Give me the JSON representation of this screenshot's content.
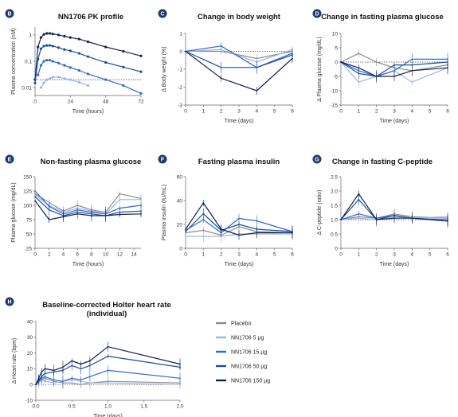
{
  "legend": [
    {
      "name": "Placebo",
      "color": "#8c8c8c"
    },
    {
      "name": "NN1706 5 µg",
      "color": "#9db4e6"
    },
    {
      "name": "NN1706 15 µg",
      "color": "#2f67d3"
    },
    {
      "name": "NN1706 50 µg",
      "color": "#1d4e9c"
    },
    {
      "name": "NN1706 150 µg",
      "color": "#0f2356"
    }
  ],
  "chart_data": [
    {
      "id": "B",
      "badge": "B",
      "type": "line",
      "title": "NN1706 PK profile",
      "xlabel": "Time (hours)",
      "ylabel": "Plasma concentration (nM)",
      "xlim": [
        0,
        72
      ],
      "xticks": [
        0,
        24,
        48,
        72
      ],
      "ylim": [
        0.005,
        2
      ],
      "ylog": true,
      "yticks": [
        0.01,
        0.1,
        1
      ],
      "yticklabels": [
        "0.01",
        "0.1",
        "1"
      ],
      "refline": 0.02,
      "series": [
        {
          "name": "NN1706 150 µg",
          "color": "#0f2356",
          "x": [
            0,
            2,
            4,
            6,
            8,
            10,
            12,
            16,
            20,
            24,
            30,
            36,
            48,
            60,
            72
          ],
          "y": [
            0.02,
            0.35,
            0.8,
            1.05,
            1.15,
            1.15,
            1.1,
            1.0,
            0.9,
            0.8,
            0.7,
            0.55,
            0.35,
            0.24,
            0.16
          ]
        },
        {
          "name": "NN1706 50 µg",
          "color": "#1d4e9c",
          "x": [
            0,
            2,
            4,
            6,
            8,
            10,
            12,
            16,
            20,
            24,
            30,
            36,
            48,
            60,
            72
          ],
          "y": [
            0.015,
            0.12,
            0.3,
            0.38,
            0.4,
            0.4,
            0.38,
            0.33,
            0.28,
            0.25,
            0.2,
            0.15,
            0.09,
            0.06,
            0.04
          ]
        },
        {
          "name": "NN1706 15 µg",
          "color": "#2f67d3",
          "x": [
            2,
            4,
            6,
            8,
            10,
            12,
            16,
            20,
            24,
            30,
            36,
            48,
            60,
            72
          ],
          "y": [
            0.03,
            0.07,
            0.1,
            0.11,
            0.11,
            0.1,
            0.085,
            0.07,
            0.058,
            0.045,
            0.033,
            0.02,
            0.012,
            0.006
          ]
        },
        {
          "name": "NN1706 5 µg",
          "color": "#9db4e6",
          "x": [
            4,
            6,
            8,
            10,
            12,
            16,
            20,
            24,
            30,
            36
          ],
          "y": [
            0.01,
            0.015,
            0.02,
            0.022,
            0.025,
            0.025,
            0.022,
            0.02,
            0.016,
            0.012
          ]
        }
      ]
    },
    {
      "id": "C",
      "badge": "C",
      "type": "line",
      "title": "Change in body weight",
      "xlabel": "Time (days)",
      "ylabel": "Δ Body weight (%)",
      "xlim": [
        0,
        6
      ],
      "xticks": [
        0,
        1,
        2,
        3,
        4,
        5,
        6
      ],
      "ylim": [
        -3,
        1
      ],
      "yticks": [
        -3,
        -2,
        -1,
        0,
        1
      ],
      "refline": 0,
      "series": [
        {
          "name": "Placebo",
          "color": "#8c8c8c",
          "x": [
            0,
            2,
            4,
            6
          ],
          "y": [
            0,
            0,
            -0.4,
            0
          ]
        },
        {
          "name": "NN1706 5 µg",
          "color": "#9db4e6",
          "x": [
            0,
            2,
            4,
            6
          ],
          "y": [
            0,
            0.1,
            -0.6,
            0.1
          ]
        },
        {
          "name": "NN1706 15 µg",
          "color": "#2f67d3",
          "x": [
            0,
            2,
            4,
            6
          ],
          "y": [
            0,
            0.3,
            -0.9,
            -0.1
          ]
        },
        {
          "name": "NN1706 50 µg",
          "color": "#1d4e9c",
          "x": [
            0,
            2,
            4,
            6
          ],
          "y": [
            0,
            -0.9,
            -0.9,
            -0.2
          ]
        },
        {
          "name": "NN1706 150 µg",
          "color": "#0f2356",
          "x": [
            0,
            2,
            4,
            6
          ],
          "y": [
            0,
            -1.5,
            -2.2,
            -0.4
          ]
        }
      ]
    },
    {
      "id": "D",
      "badge": "D",
      "type": "line",
      "title": "Change in fasting plasma glucose",
      "xlabel": "Time (days)",
      "ylabel": "Δ Plasma glucose (mg/dL)",
      "xlim": [
        0,
        6
      ],
      "xticks": [
        0,
        1,
        2,
        3,
        4,
        5,
        6
      ],
      "ylim": [
        -15,
        10
      ],
      "yticks": [
        -15,
        -10,
        -5,
        0,
        5,
        10
      ],
      "refline": 0,
      "series": [
        {
          "name": "Placebo",
          "color": "#8c8c8c",
          "x": [
            0,
            1,
            2,
            3,
            4,
            6
          ],
          "y": [
            0,
            3,
            0,
            -2,
            -3,
            -1
          ]
        },
        {
          "name": "NN1706 5 µg",
          "color": "#9db4e6",
          "x": [
            0,
            1,
            2,
            3,
            4,
            6
          ],
          "y": [
            0,
            -7,
            -5,
            -3,
            -7,
            -2
          ]
        },
        {
          "name": "NN1706 15 µg",
          "color": "#2f67d3",
          "x": [
            0,
            1,
            2,
            3,
            4,
            6
          ],
          "y": [
            0,
            -3,
            -5,
            -3,
            1,
            1
          ]
        },
        {
          "name": "NN1706 50 µg",
          "color": "#1d4e9c",
          "x": [
            0,
            1,
            2,
            3,
            4,
            6
          ],
          "y": [
            0,
            -4,
            -5,
            -1,
            -1,
            0
          ]
        },
        {
          "name": "NN1706 150 µg",
          "color": "#0f2356",
          "x": [
            0,
            1,
            2,
            3,
            4,
            6
          ],
          "y": [
            0,
            -2,
            -5,
            -5,
            -3,
            -2
          ]
        }
      ]
    },
    {
      "id": "E",
      "badge": "E",
      "type": "line",
      "title": "Non-fasting plasma glucose",
      "xlabel": "Time (hours)",
      "ylabel": "Plasma glucose (mg/dL)",
      "xlim": [
        0,
        15
      ],
      "xticks": [
        0,
        2,
        4,
        6,
        8,
        10,
        12,
        14
      ],
      "ylim": [
        25,
        150
      ],
      "yticks": [
        25,
        50,
        75,
        100,
        125,
        150
      ],
      "series": [
        {
          "name": "Placebo",
          "color": "#8c8c8c",
          "x": [
            0,
            2,
            4,
            6,
            8,
            10,
            12,
            15
          ],
          "y": [
            120,
            105,
            90,
            100,
            92,
            88,
            120,
            112
          ]
        },
        {
          "name": "NN1706 5 µg",
          "color": "#9db4e6",
          "x": [
            0,
            2,
            4,
            6,
            8,
            10,
            12,
            15
          ],
          "y": [
            118,
            100,
            88,
            95,
            90,
            85,
            110,
            110
          ]
        },
        {
          "name": "NN1706 15 µg",
          "color": "#2f67d3",
          "x": [
            0,
            2,
            4,
            6,
            8,
            10,
            12,
            15
          ],
          "y": [
            125,
            98,
            85,
            92,
            88,
            85,
            95,
            100
          ]
        },
        {
          "name": "NN1706 50 µg",
          "color": "#1d4e9c",
          "x": [
            0,
            2,
            4,
            6,
            8,
            10,
            12,
            15
          ],
          "y": [
            115,
            92,
            82,
            88,
            85,
            82,
            88,
            90
          ]
        },
        {
          "name": "NN1706 150 µg",
          "color": "#0f2356",
          "x": [
            0,
            2,
            4,
            6,
            8,
            10,
            12,
            15
          ],
          "y": [
            108,
            75,
            80,
            85,
            82,
            82,
            84,
            85
          ]
        }
      ]
    },
    {
      "id": "F",
      "badge": "F",
      "type": "line",
      "title": "Fasting plasma insulin",
      "xlabel": "Time (days)",
      "ylabel": "Plasma insulin (IU/mL)",
      "xlim": [
        0,
        6
      ],
      "xticks": [
        0,
        1,
        2,
        3,
        4,
        5,
        6
      ],
      "ylim": [
        0,
        60
      ],
      "yticks": [
        0,
        20,
        40,
        60
      ],
      "series": [
        {
          "name": "Placebo",
          "color": "#8c8c8c",
          "x": [
            0,
            1,
            2,
            3,
            4,
            6
          ],
          "y": [
            13,
            15,
            11,
            18,
            14,
            13
          ]
        },
        {
          "name": "NN1706 5 µg",
          "color": "#9db4e6",
          "x": [
            0,
            1,
            2,
            3,
            4,
            6
          ],
          "y": [
            10,
            10,
            10,
            12,
            12,
            12
          ]
        },
        {
          "name": "NN1706 15 µg",
          "color": "#2f67d3",
          "x": [
            0,
            1,
            2,
            3,
            4,
            6
          ],
          "y": [
            15,
            24,
            13,
            25,
            23,
            14
          ]
        },
        {
          "name": "NN1706 50 µg",
          "color": "#1d4e9c",
          "x": [
            0,
            1,
            2,
            3,
            4,
            6
          ],
          "y": [
            14,
            29,
            15,
            20,
            16,
            14
          ]
        },
        {
          "name": "NN1706 150 µg",
          "color": "#0f2356",
          "x": [
            0,
            1,
            2,
            3,
            4,
            6
          ],
          "y": [
            16,
            38,
            16,
            11,
            13,
            13
          ]
        }
      ]
    },
    {
      "id": "G",
      "badge": "G",
      "type": "line",
      "title": "Change in fasting C-peptide",
      "xlabel": "Time (days)",
      "ylabel": "Δ C-peptide (ratio)",
      "xlim": [
        0,
        6
      ],
      "xticks": [
        0,
        1,
        2,
        3,
        4,
        5,
        6
      ],
      "ylim": [
        0,
        2.5
      ],
      "yticks": [
        0,
        0.5,
        1,
        1.5,
        2,
        2.5
      ],
      "yticklabels": [
        "0",
        "0.5",
        "1.0",
        "1.5",
        "2.0",
        "2.5"
      ],
      "refline": 1,
      "series": [
        {
          "name": "Placebo",
          "color": "#8c8c8c",
          "x": [
            0,
            1,
            2,
            3,
            4,
            6
          ],
          "y": [
            1,
            1.1,
            1.05,
            1.2,
            1.1,
            1.05
          ]
        },
        {
          "name": "NN1706 5 µg",
          "color": "#9db4e6",
          "x": [
            0,
            1,
            2,
            3,
            4,
            6
          ],
          "y": [
            1,
            1.05,
            1.0,
            1.1,
            1.05,
            1.1
          ]
        },
        {
          "name": "NN1706 15 µg",
          "color": "#2f67d3",
          "x": [
            0,
            1,
            2,
            3,
            4,
            6
          ],
          "y": [
            1,
            1.2,
            1.05,
            1.15,
            1.05,
            1.0
          ]
        },
        {
          "name": "NN1706 50 µg",
          "color": "#1d4e9c",
          "x": [
            0,
            1,
            2,
            3,
            4,
            6
          ],
          "y": [
            1,
            1.7,
            1.0,
            1.15,
            1.05,
            0.95
          ]
        },
        {
          "name": "NN1706 150 µg",
          "color": "#0f2356",
          "x": [
            0,
            1,
            2,
            3,
            4,
            6
          ],
          "y": [
            1,
            1.9,
            1.0,
            1.05,
            1.05,
            0.95
          ]
        }
      ]
    },
    {
      "id": "H",
      "badge": "H",
      "type": "line",
      "title": "Baseline-corrected Holter heart rate",
      "subtitle": "(individual)",
      "xlabel": "Time (days)",
      "ylabel": "Δ Heart rate (bpm)",
      "xlim": [
        0,
        2
      ],
      "xticks": [
        0,
        0.5,
        1,
        1.5,
        2
      ],
      "xticklabels": [
        "0.0",
        "0.5",
        "1.0",
        "1.5",
        "2.0"
      ],
      "ylim": [
        -10,
        40
      ],
      "yticks": [
        -10,
        0,
        10,
        20,
        30,
        40
      ],
      "refline": 0,
      "series": [
        {
          "name": "Placebo",
          "color": "#8c8c8c",
          "x": [
            0,
            0.04,
            0.08,
            0.125,
            0.25,
            0.375,
            0.5,
            0.625,
            0.75,
            1.0,
            2.0
          ],
          "y": [
            0,
            2,
            3,
            4,
            2,
            1,
            1,
            0,
            1,
            2,
            1
          ]
        },
        {
          "name": "NN1706 5 µg",
          "color": "#9db4e6",
          "x": [
            0,
            0.04,
            0.08,
            0.125,
            0.25,
            0.375,
            0.5,
            0.625,
            0.75,
            1.0,
            2.0
          ],
          "y": [
            0,
            1,
            3,
            2,
            1,
            2,
            3,
            2,
            1,
            1,
            0
          ]
        },
        {
          "name": "NN1706 15 µg",
          "color": "#2f67d3",
          "x": [
            0,
            0.04,
            0.08,
            0.125,
            0.25,
            0.375,
            0.5,
            0.625,
            0.75,
            1.0,
            2.0
          ],
          "y": [
            0,
            2,
            4,
            5,
            3,
            2,
            4,
            3,
            5,
            9,
            4
          ]
        },
        {
          "name": "NN1706 50 µg",
          "color": "#1d4e9c",
          "x": [
            0,
            0.04,
            0.08,
            0.125,
            0.25,
            0.375,
            0.5,
            0.625,
            0.75,
            1.0,
            2.0
          ],
          "y": [
            0,
            3,
            5,
            7,
            8,
            9,
            12,
            10,
            12,
            18,
            11
          ]
        },
        {
          "name": "NN1706 150 µg",
          "color": "#0f2356",
          "x": [
            0,
            0.04,
            0.08,
            0.125,
            0.25,
            0.375,
            0.5,
            0.625,
            0.75,
            1.0,
            2.0
          ],
          "y": [
            0,
            4,
            8,
            10,
            9,
            11,
            15,
            13,
            15,
            24,
            13
          ]
        }
      ]
    }
  ]
}
